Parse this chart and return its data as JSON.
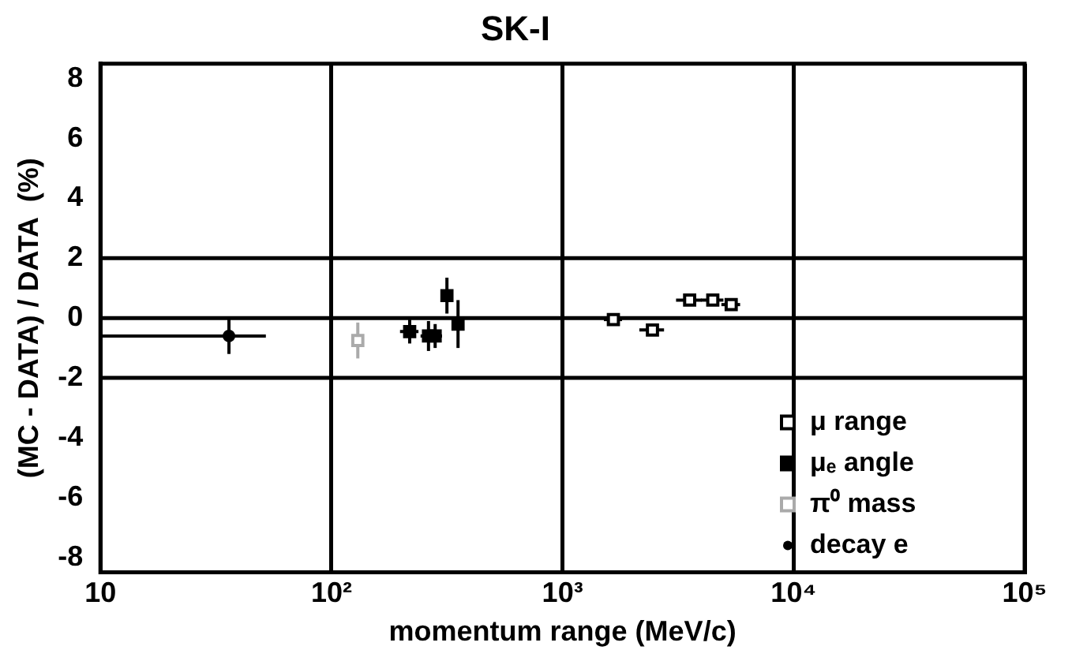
{
  "chart_data": {
    "type": "scatter",
    "title": "SK-I",
    "xlabel": "momentum range (MeV/c)",
    "ylabel": "(MC - DATA) / DATA  (%)",
    "log": "x",
    "xlim": [
      10,
      100000
    ],
    "xticks": [
      10,
      {
        "value": 100,
        "label": "10²"
      },
      {
        "value": 1000,
        "label": "10³"
      },
      {
        "value": 10000,
        "label": "10⁴"
      },
      {
        "value": 100000,
        "label": "10⁵"
      }
    ],
    "ylim": [
      -8.5,
      8.5
    ],
    "yticks": [
      -8,
      -6,
      -4,
      -2,
      0,
      2,
      4,
      6,
      8
    ],
    "grid": "x",
    "legend": "bottom right",
    "ref_lines": [
      {
        "axis": "y",
        "value": 2
      },
      {
        "axis": "y",
        "value": 0
      },
      {
        "axis": "y",
        "value": -2
      }
    ],
    "series": [
      {
        "name": "μ range",
        "color": "#000000",
        "marker": "square",
        "x": [
          1660,
          2450,
          3550,
          4470,
          5370
        ],
        "values": [
          -0.05,
          -0.4,
          0.6,
          0.6,
          0.45
        ],
        "xerrors": [
          150,
          300,
          450,
          500,
          500
        ]
      },
      {
        "name": "μₑ angle",
        "color": "#000000",
        "marker": "square",
        "x": [
          218,
          263,
          281,
          316,
          353
        ],
        "values": [
          -0.45,
          -0.6,
          -0.6,
          0.75,
          -0.2
        ],
        "errors": [
          0.4,
          0.5,
          0.4,
          0.6,
          0.8
        ],
        "xerrors": [
          20,
          20,
          20,
          15,
          15
        ]
      },
      {
        "name": "π⁰ mass",
        "color": "#aaaaaa",
        "marker": "square",
        "x": [
          130
        ],
        "values": [
          -0.75
        ],
        "errors": [
          0.6
        ]
      },
      {
        "name": "decay e",
        "color": "#000000",
        "marker": "circle",
        "x": [
          36
        ],
        "values": [
          -0.6
        ],
        "errors": [
          0.6
        ],
        "xerrors": [
          [
            10,
            52
          ]
        ]
      }
    ]
  }
}
